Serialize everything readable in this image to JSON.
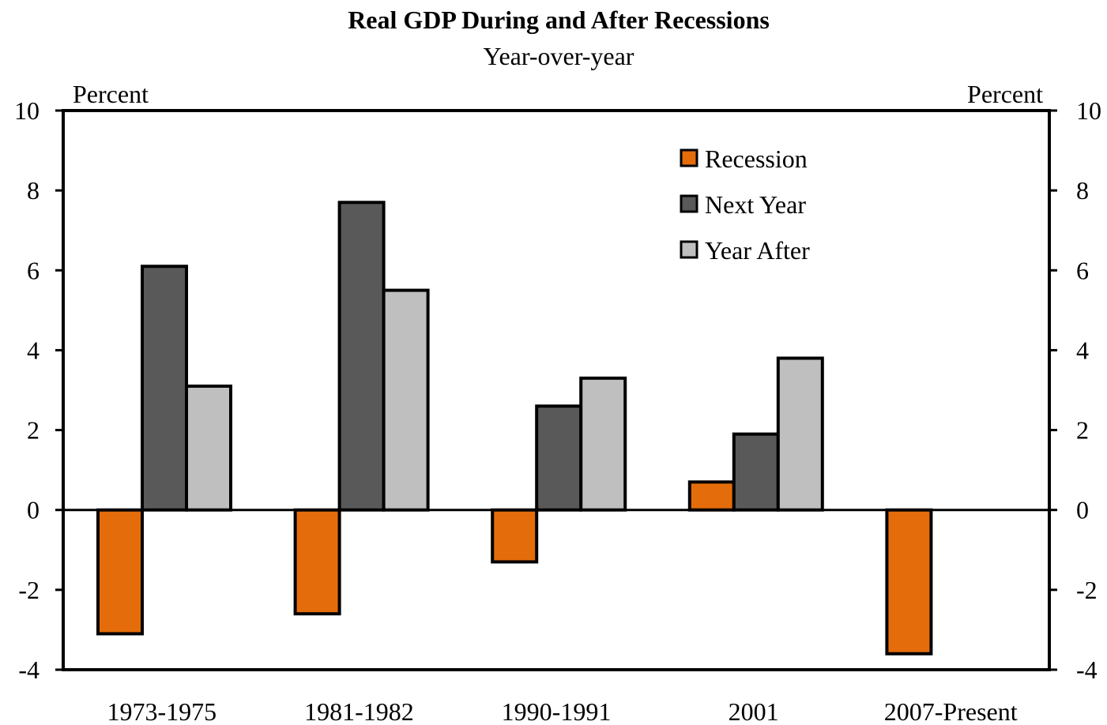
{
  "chart_data": {
    "type": "bar",
    "title": "Real GDP During and After Recessions",
    "subtitle": "Year-over-year",
    "ylabel_left": "Percent",
    "ylabel_right": "Percent",
    "categories": [
      "1973-1975",
      "1981-1982",
      "1990-1991",
      "2001",
      "2007-Present"
    ],
    "series": [
      {
        "name": "Recession",
        "color": "#e46c0a",
        "values": [
          -3.1,
          -2.6,
          -1.3,
          0.7,
          -3.6
        ]
      },
      {
        "name": "Next Year",
        "color": "#595959",
        "values": [
          6.1,
          7.7,
          2.6,
          1.9,
          null
        ]
      },
      {
        "name": "Year After",
        "color": "#bfbfbf",
        "values": [
          3.1,
          5.5,
          3.3,
          3.8,
          null
        ]
      }
    ],
    "ylim": [
      -4,
      10
    ],
    "yticks": [
      -4,
      -2,
      0,
      2,
      4,
      6,
      8,
      10
    ],
    "grid": false,
    "legend_position": "top-right"
  }
}
